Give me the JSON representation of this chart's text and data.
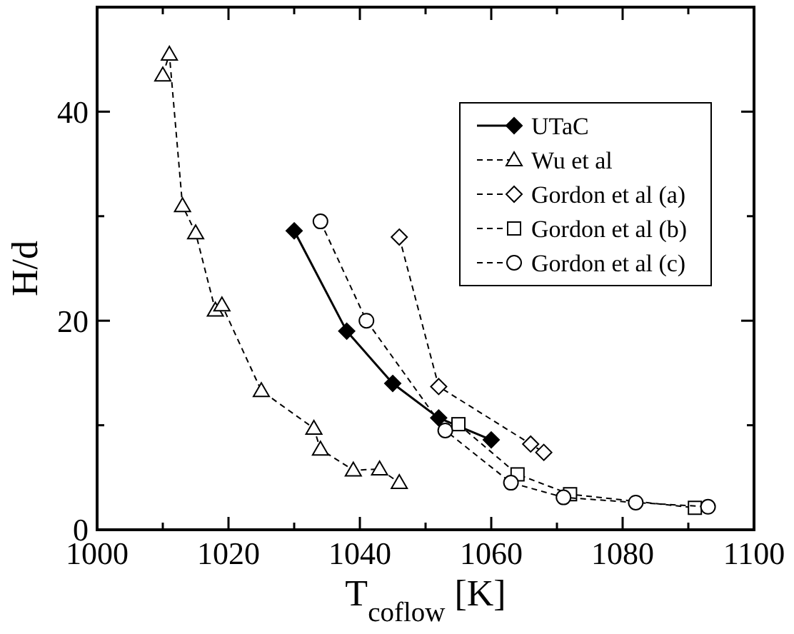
{
  "chart_data": {
    "type": "line",
    "xlabel": "T$_{coflow}$ [K]",
    "ylabel": "H/d",
    "xlim": [
      1000,
      1100
    ],
    "ylim": [
      0,
      50
    ],
    "xticks": [
      1000,
      {
        "value": 1010,
        "label": null
      },
      1020,
      {
        "value": 1030,
        "label": null
      },
      1040,
      {
        "value": 1050,
        "label": null
      },
      1060,
      {
        "value": 1070,
        "label": null
      },
      1080,
      {
        "value": 1090,
        "label": null
      },
      1100
    ],
    "yticks": [
      0,
      {
        "value": 10,
        "label": null
      },
      20,
      {
        "value": 30,
        "label": null
      },
      40
    ],
    "legend": "top right",
    "grid": false,
    "series": [
      {
        "name": "UTaC",
        "color": "#000000",
        "marker": "diamond",
        "line_style": "solid",
        "x": [
          1030,
          1038,
          1045,
          1052,
          1060
        ],
        "values": [
          28.6,
          19,
          14,
          10.7,
          8.6
        ]
      },
      {
        "name": "Wu et al",
        "color": "#000000",
        "marker": "triangle",
        "line_style": "dashed",
        "x": [
          1010,
          1011,
          1013,
          1015,
          1018,
          1019,
          1025,
          1033,
          1034,
          1039,
          1043,
          1046
        ],
        "values": [
          43.5,
          45.5,
          31,
          28.4,
          21,
          21.5,
          13.3,
          9.7,
          7.7,
          5.7,
          5.8,
          4.5
        ]
      },
      {
        "name": "Gordon et al (a)",
        "color": "#000000",
        "marker": "diamond",
        "line_style": "dashed",
        "x": [
          1046,
          1052,
          1066,
          1068
        ],
        "values": [
          28,
          13.7,
          8.2,
          7.4
        ]
      },
      {
        "name": "Gordon et al (b)",
        "color": "#000000",
        "marker": "square",
        "line_style": "dashed",
        "x": [
          1055,
          1064,
          1072,
          1091
        ],
        "values": [
          10.1,
          5.3,
          3.4,
          2.1
        ]
      },
      {
        "name": "Gordon et al (c)",
        "color": "#000000",
        "marker": "circle",
        "line_style": "dashed",
        "x": [
          1034,
          1041,
          1053,
          1063,
          1071,
          1082,
          1093
        ],
        "values": [
          29.5,
          20,
          9.5,
          4.5,
          3.1,
          2.6,
          2.2
        ]
      }
    ]
  }
}
